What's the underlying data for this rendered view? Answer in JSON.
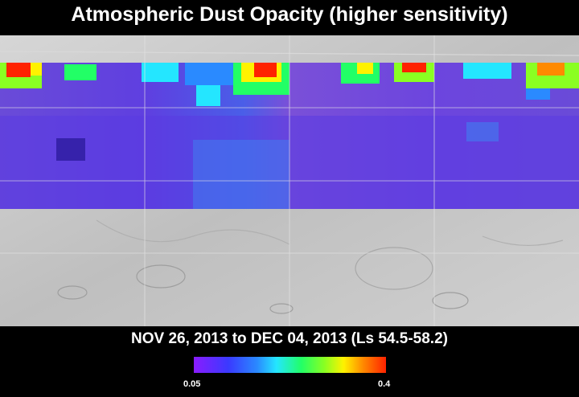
{
  "title": "Atmospheric Dust Opacity (higher sensitivity)",
  "date_range": "NOV 26, 2013 to DEC 04, 2013 (Ls 54.5-58.2)",
  "legend": {
    "min_label": "0.05",
    "max_label": "0.4",
    "min_value": 0.05,
    "max_value": 0.4
  },
  "colors": {
    "low": "#8a1cff",
    "mid_low": "#2a8aff",
    "mid": "#22ff66",
    "mid_high": "#fff200",
    "high": "#ff2200"
  }
}
